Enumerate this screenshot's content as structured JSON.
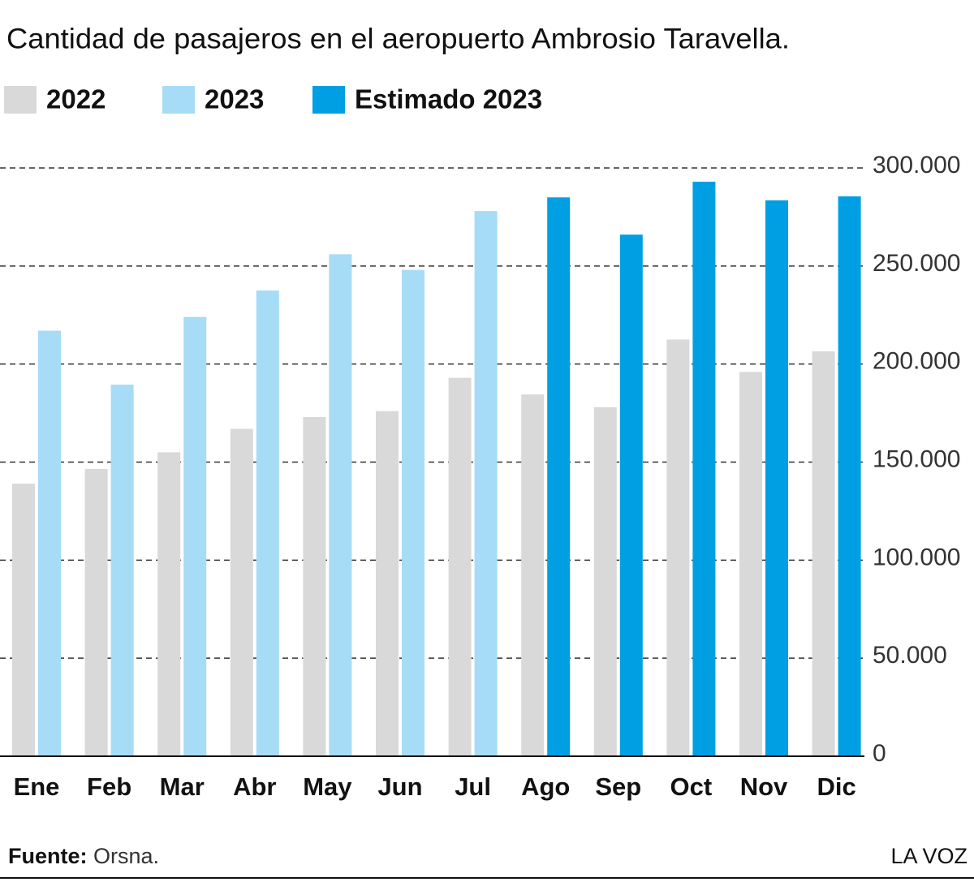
{
  "chart_data": {
    "type": "bar",
    "title": "Cantidad de pasajeros en el aeropuerto Ambrosio Taravella.",
    "categories": [
      "Ene",
      "Feb",
      "Mar",
      "Abr",
      "May",
      "Jun",
      "Jul",
      "Ago",
      "Sep",
      "Oct",
      "Nov",
      "Dic"
    ],
    "series": [
      {
        "name": "2022",
        "color": "#d9d9d9",
        "values": [
          139000,
          146500,
          155000,
          167000,
          173000,
          176000,
          193000,
          184500,
          178000,
          212500,
          196000,
          206500
        ]
      },
      {
        "name": "2023",
        "color": "#a6dcf5",
        "values": [
          217000,
          189500,
          224000,
          237500,
          256000,
          248000,
          278000,
          null,
          null,
          null,
          null,
          null
        ]
      },
      {
        "name": "Estimado 2023",
        "color": "#009fe3",
        "values": [
          null,
          null,
          null,
          null,
          null,
          null,
          null,
          285000,
          266000,
          293000,
          283500,
          285500
        ]
      }
    ],
    "ylim": [
      0,
      300000
    ],
    "yticks": [
      0,
      {
        "value": 50000,
        "label": "50.000"
      },
      {
        "value": 100000,
        "label": "100.000"
      },
      {
        "value": 150000,
        "label": "150.000"
      },
      {
        "value": 200000,
        "label": "200.000"
      },
      {
        "value": 250000,
        "label": "250.000"
      },
      {
        "value": 300000,
        "label": "300.000"
      }
    ],
    "grid": true,
    "source_label": "Fuente:",
    "source": "Orsna.",
    "brand": "LA VOZ"
  }
}
